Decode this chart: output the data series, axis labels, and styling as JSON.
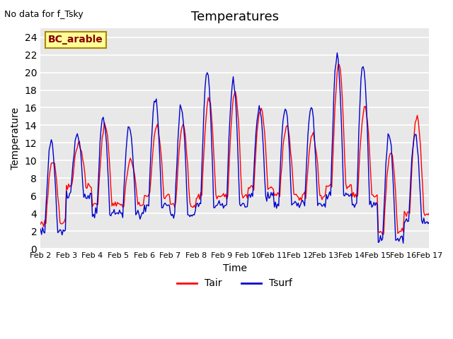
{
  "title": "Temperatures",
  "xlabel": "Time",
  "ylabel": "Temperature",
  "annotation": "No data for f_Tsky",
  "legend_label": "BC_arable",
  "ylim": [
    0,
    25
  ],
  "yticks": [
    0,
    2,
    4,
    6,
    8,
    10,
    12,
    14,
    16,
    18,
    20,
    22,
    24
  ],
  "xtick_labels": [
    "Feb 2",
    "Feb 3",
    "Feb 4",
    "Feb 5",
    "Feb 6",
    "Feb 7",
    "Feb 8",
    "Feb 9",
    "Feb 10",
    "Feb 11",
    "Feb 12",
    "Feb 13",
    "Feb 14",
    "Feb 15",
    "Feb 16",
    "Feb 17"
  ],
  "line_Tair_color": "#ff0000",
  "line_Tsurf_color": "#0000cc",
  "background_color": "#e8e8e8",
  "legend_box_color": "#ffff99",
  "legend_box_edge": "#aa8800",
  "grid_color": "#ffffff",
  "num_points_per_day": 24,
  "num_days": 15
}
